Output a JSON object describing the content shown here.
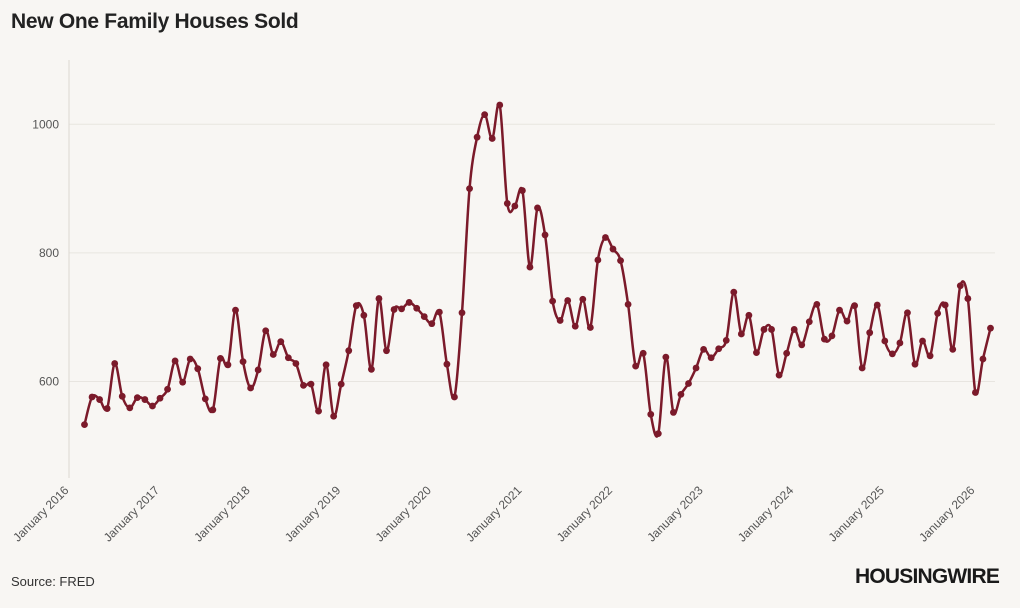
{
  "title": "New One Family Houses Sold",
  "source": "Source: FRED",
  "logo_text": "HOUSINGWIRE",
  "colors": {
    "line": "#7b1a2a",
    "background": "#f8f6f3",
    "grid": "#e8e5e0"
  },
  "chart_data": {
    "type": "line",
    "title": "New One Family Houses Sold",
    "xlabel": "",
    "ylabel": "",
    "ylim": [
      450,
      1100
    ],
    "y_ticks": [
      600,
      800,
      1000
    ],
    "x_ticks": [
      "January 2016",
      "January 2017",
      "January 2018",
      "January 2019",
      "January 2020",
      "January 2021",
      "January 2022",
      "January 2023",
      "January 2024",
      "January 2025",
      "January 2026"
    ],
    "x_start": "2016-03",
    "grid": "horizontal",
    "series": [
      {
        "values": [
          533,
          576,
          572,
          558,
          628,
          577,
          559,
          575,
          572,
          562,
          574,
          588,
          632,
          599,
          635,
          620,
          573,
          556,
          636,
          626,
          711,
          631,
          590,
          618,
          679,
          642,
          662,
          637,
          628,
          594,
          596,
          554,
          626,
          546,
          596,
          648,
          718,
          703,
          619,
          729,
          648,
          712,
          713,
          723,
          714,
          701,
          690,
          708,
          627,
          576,
          707,
          900,
          980,
          1015,
          978,
          1030,
          877,
          873,
          897,
          778,
          870,
          828,
          725,
          695,
          726,
          686,
          728,
          684,
          789,
          824,
          806,
          788,
          720,
          624,
          644,
          549,
          519,
          638,
          552,
          580,
          597,
          621,
          650,
          637,
          651,
          664,
          739,
          674,
          703,
          645,
          681,
          681,
          610,
          644,
          681,
          657,
          693,
          720,
          666,
          671,
          711,
          694,
          718,
          621,
          676,
          719,
          663,
          643,
          660,
          707,
          627,
          663,
          640,
          706,
          719,
          650,
          749,
          729,
          583,
          635,
          683
        ]
      }
    ]
  }
}
